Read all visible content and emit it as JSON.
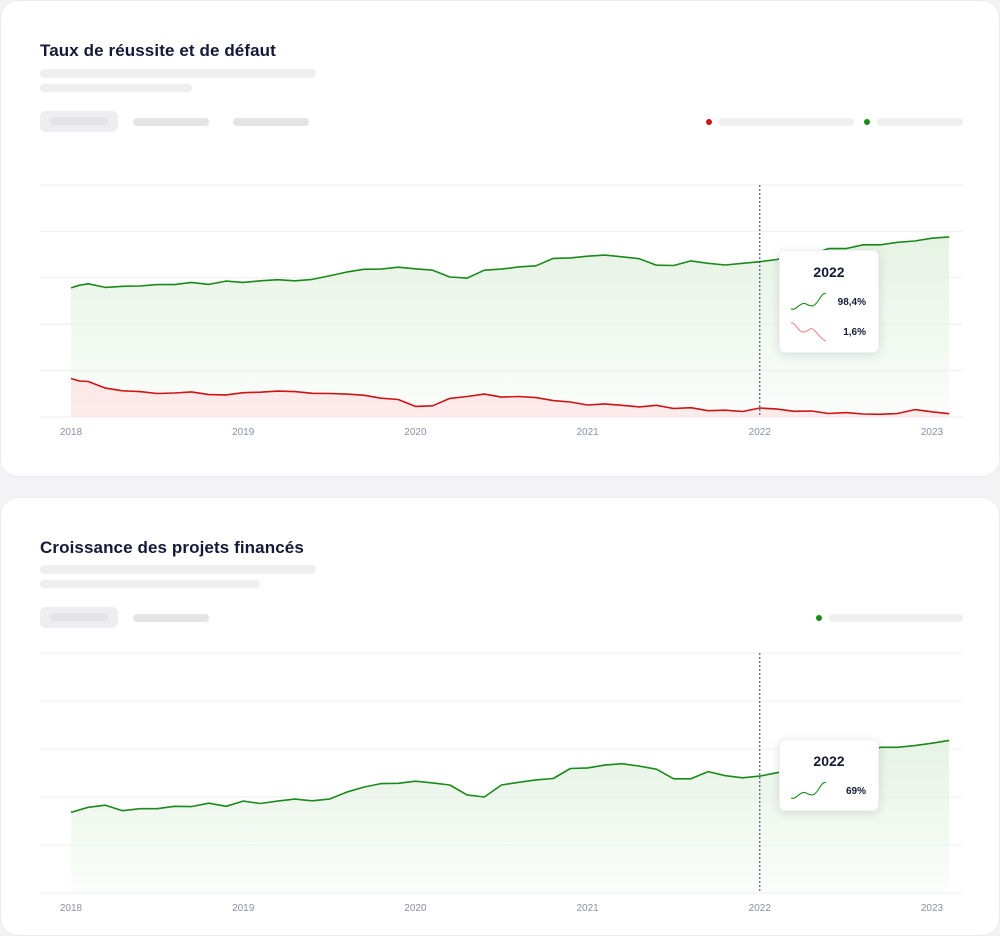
{
  "colors": {
    "success": "#1a8a1a",
    "default": "#cc1414",
    "success_fill": "#e6f3e4",
    "default_fill": "#fde8e8",
    "grid": "#eeeef2",
    "marker": "#2a3a6e"
  },
  "cards": [
    {
      "title": "Taux de réussite et de défaut",
      "tooltip": {
        "year": "2022",
        "rows": [
          {
            "value": "98,4%",
            "color": "#1a8a1a",
            "trend": "up"
          },
          {
            "value": "1,6%",
            "color": "#f08a8a",
            "trend": "down"
          }
        ]
      }
    },
    {
      "title": "Croissance des projets financés",
      "tooltip": {
        "year": "2022",
        "rows": [
          {
            "value": "69%",
            "color": "#1a8a1a",
            "trend": "up"
          }
        ]
      }
    }
  ],
  "chart_data": [
    {
      "type": "area",
      "title": "Taux de réussite et de défaut",
      "x": [
        2018.0,
        2018.05,
        2018.1,
        2018.2,
        2018.3,
        2018.4,
        2018.5,
        2018.6,
        2018.7,
        2018.8,
        2018.9,
        2019.0,
        2019.1,
        2019.2,
        2019.3,
        2019.4,
        2019.5,
        2019.6,
        2019.7,
        2019.8,
        2019.9,
        2020.0,
        2020.1,
        2020.2,
        2020.3,
        2020.4,
        2020.5,
        2020.6,
        2020.7,
        2020.8,
        2020.9,
        2021.0,
        2021.1,
        2021.2,
        2021.3,
        2021.4,
        2021.5,
        2021.6,
        2021.7,
        2021.8,
        2021.9,
        2022.0,
        2022.1,
        2022.2,
        2022.3,
        2022.4,
        2022.5,
        2022.6,
        2022.7,
        2022.8,
        2022.9,
        2023.0,
        2023.1,
        2023.2
      ],
      "xticks": [
        "2018",
        "2019",
        "2020",
        "2021",
        "2022",
        "2023"
      ],
      "grid": true,
      "series": [
        {
          "color": "#1a8a1a",
          "values": [
            57.3,
            58.3,
            58.8,
            57.5,
            57.9,
            58.0,
            58.5,
            58.5,
            59.3,
            58.6,
            59.8,
            59.3,
            59.9,
            60.3,
            59.9,
            60.4,
            61.7,
            63.1,
            64.1,
            64.2,
            64.9,
            64.3,
            63.8,
            61.3,
            60.9,
            63.8,
            64.2,
            65.0,
            65.4,
            68.1,
            68.3,
            68.9,
            69.3,
            68.7,
            68.0,
            65.6,
            65.5,
            67.2,
            66.3,
            65.7,
            66.3,
            66.9,
            67.7,
            69.7,
            69.7,
            71.7,
            71.7,
            73.1,
            73.1,
            74.0,
            74.5,
            75.5,
            76.0,
            77.5
          ]
        },
        {
          "color": "#cc1414",
          "values": [
            24.1,
            23.2,
            23.0,
            20.6,
            19.6,
            19.3,
            18.6,
            18.8,
            19.2,
            18.2,
            18.1,
            18.9,
            19.1,
            19.5,
            19.3,
            18.7,
            18.6,
            18.4,
            18.0,
            16.9,
            16.4,
            13.9,
            14.1,
            16.8,
            17.5,
            18.4,
            17.3,
            17.5,
            17.1,
            16.0,
            15.5,
            14.4,
            14.8,
            14.3,
            13.7,
            14.3,
            13.1,
            13.4,
            12.3,
            12.5,
            12.0,
            13.3,
            12.9,
            12.1,
            12.2,
            11.3,
            11.6,
            11.1,
            11.0,
            11.3,
            12.7,
            11.9,
            11.2,
            10.7
          ]
        }
      ]
    },
    {
      "type": "area",
      "title": "Croissance des projets financés",
      "x": [
        2018.0,
        2018.1,
        2018.2,
        2018.3,
        2018.4,
        2018.5,
        2018.6,
        2018.7,
        2018.8,
        2018.9,
        2019.0,
        2019.1,
        2019.2,
        2019.3,
        2019.4,
        2019.5,
        2019.6,
        2019.7,
        2019.8,
        2019.9,
        2020.0,
        2020.1,
        2020.2,
        2020.3,
        2020.4,
        2020.5,
        2020.6,
        2020.7,
        2020.8,
        2020.9,
        2021.0,
        2021.1,
        2021.2,
        2021.3,
        2021.4,
        2021.5,
        2021.6,
        2021.7,
        2021.8,
        2021.9,
        2022.0,
        2022.1,
        2022.2,
        2022.3,
        2022.4,
        2022.5,
        2022.6,
        2022.7,
        2022.8,
        2022.9,
        2023.0,
        2023.1,
        2023.2
      ],
      "xticks": [
        "2018",
        "2019",
        "2020",
        "2021",
        "2022",
        "2023"
      ],
      "grid": true,
      "series": [
        {
          "color": "#1a8a1a",
          "values": [
            53.5,
            55.0,
            55.6,
            54.0,
            54.6,
            54.6,
            55.3,
            55.2,
            56.2,
            55.3,
            56.8,
            56.1,
            56.8,
            57.4,
            56.9,
            57.4,
            59.4,
            60.9,
            61.9,
            62.0,
            62.6,
            62.1,
            61.5,
            58.6,
            58.0,
            61.5,
            62.3,
            63.0,
            63.4,
            66.3,
            66.5,
            67.3,
            67.7,
            67.0,
            66.1,
            63.3,
            63.3,
            65.4,
            64.2,
            63.6,
            64.1,
            65.1,
            66.0,
            68.4,
            68.4,
            70.5,
            70.5,
            72.5,
            72.5,
            73.0,
            73.7,
            74.5,
            75.5
          ]
        }
      ]
    }
  ]
}
